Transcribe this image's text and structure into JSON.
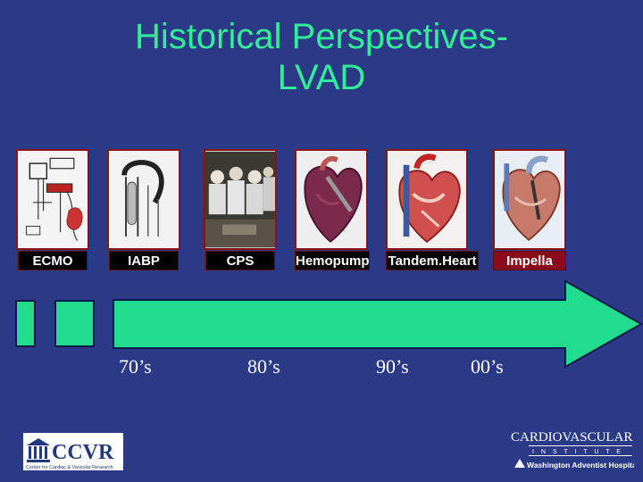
{
  "title": {
    "line1": "Historical Perspectives-",
    "line2": "LVAD"
  },
  "devices": [
    {
      "label": "ECMO",
      "icon": "ecmo-diagram-icon"
    },
    {
      "label": "IABP",
      "icon": "iabp-diagram-icon"
    },
    {
      "label": "CPS",
      "icon": "cps-photo-icon"
    },
    {
      "label": "Hemopump",
      "icon": "hemopump-heart-icon"
    },
    {
      "label": "Tandem.Heart",
      "icon": "tandemheart-heart-icon"
    },
    {
      "label": "Impella",
      "icon": "impella-heart-icon"
    }
  ],
  "timeline": {
    "decades": [
      "70’s",
      "80’s",
      "90’s",
      "00’s"
    ]
  },
  "logos": {
    "left": {
      "name": "CCVR",
      "subtitle": "Center for Cardiac & Vascular Research"
    },
    "right": {
      "name": "CARDIOVASCULAR",
      "sub": "I N S T I T U T E",
      "hospital": "Washington Adventist Hospital"
    }
  },
  "colors": {
    "background": "#2b3a86",
    "accent_green": "#33ee99",
    "arrow_green": "#20dc8c",
    "label_black": "#000000",
    "impella_red": "#8a0c1a"
  }
}
